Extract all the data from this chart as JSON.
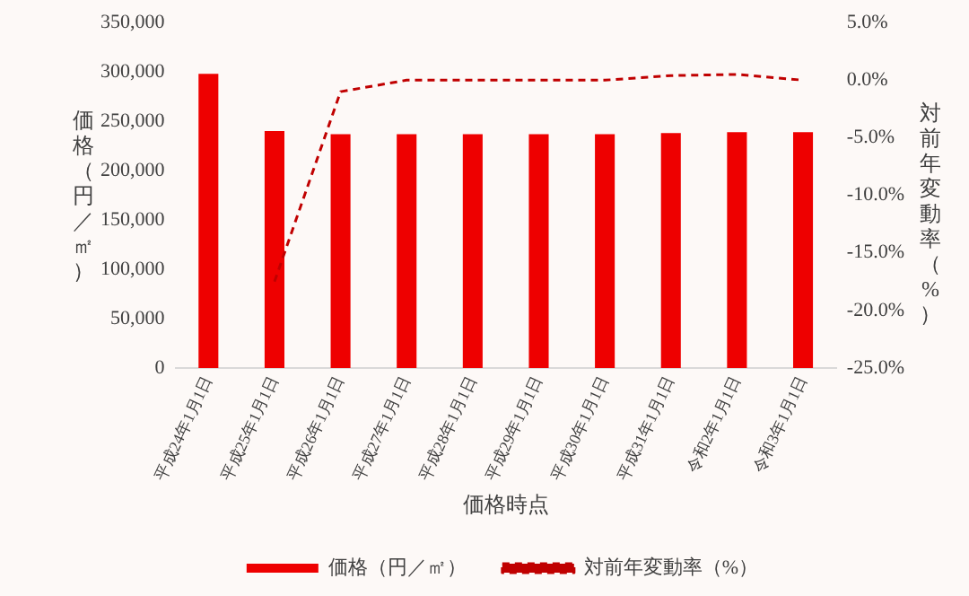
{
  "chart_data": {
    "type": "bar",
    "xlabel": "価格時点",
    "ylabel": "価格（円／㎡）",
    "y2label": "対前年変動率（%）",
    "categories": [
      "平成24年1月1日",
      "平成25年1月1日",
      "平成26年1月1日",
      "平成27年1月1日",
      "平成28年1月1日",
      "平成29年1月1日",
      "平成30年1月1日",
      "平成31年1月1日",
      "令和2年1月1日",
      "令和3年1月1日"
    ],
    "series": [
      {
        "name": "価格（円／㎡）",
        "color": "#ee0000",
        "values": [
          298000,
          240000,
          237000,
          237000,
          237000,
          237000,
          237000,
          238000,
          239000,
          239000
        ]
      },
      {
        "name": "対前年変動率（%）",
        "type": "line",
        "axis": "y2",
        "color": "#c00000",
        "line_style": "dashed",
        "marker": "none",
        "values": [
          null,
          -17.5,
          -1.0,
          0.0,
          0.0,
          0.0,
          0.0,
          0.4,
          0.5,
          0.0
        ]
      }
    ],
    "ylim": [
      0,
      350000
    ],
    "yticks": [
      0,
      {
        "value": 50000,
        "label": "50,000"
      },
      {
        "value": 100000,
        "label": "100,000"
      },
      {
        "value": 150000,
        "label": "150,000"
      },
      {
        "value": 200000,
        "label": "200,000"
      },
      {
        "value": 250000,
        "label": "250,000"
      },
      {
        "value": 300000,
        "label": "300,000"
      },
      {
        "value": 350000,
        "label": "350,000"
      }
    ],
    "y2lim": [
      -25,
      5
    ],
    "y2ticks": [
      {
        "value": -25,
        "label": "-25.0%"
      },
      {
        "value": -20,
        "label": "-20.0%"
      },
      {
        "value": -15,
        "label": "-15.0%"
      },
      {
        "value": -10,
        "label": "-10.0%"
      },
      {
        "value": -5,
        "label": "-5.0%"
      },
      {
        "value": 0,
        "label": "0.0%"
      },
      {
        "value": 5,
        "label": "5.0%"
      }
    ],
    "grid": false,
    "legend": "bottom"
  }
}
